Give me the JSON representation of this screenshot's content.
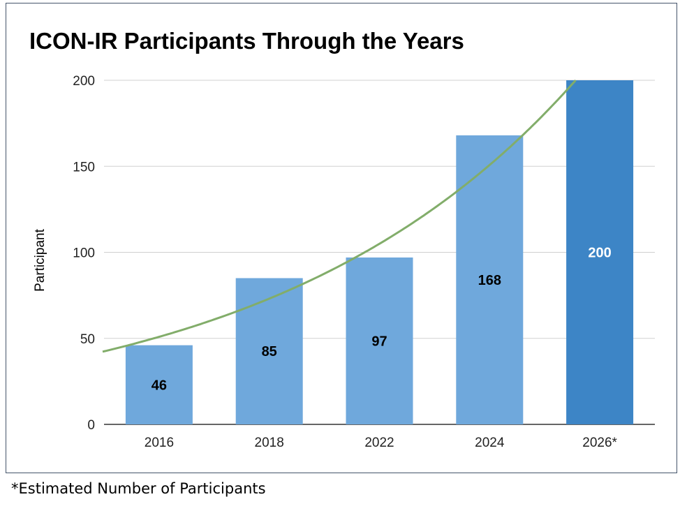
{
  "chart_data": {
    "type": "bar",
    "title": "ICON-IR Participants Through the Years",
    "xlabel": "",
    "ylabel": "Participant",
    "categories": [
      "2016",
      "2018",
      "2022",
      "2024",
      "2026*"
    ],
    "values": [
      46,
      85,
      97,
      168,
      200
    ],
    "data_labels": [
      "46",
      "85",
      "97",
      "168",
      "200"
    ],
    "ylim": [
      0,
      200
    ],
    "yticks": [
      0,
      50,
      100,
      150,
      200
    ],
    "grid": true,
    "legend": "none",
    "bar_colors": [
      "#6fa8dc",
      "#6fa8dc",
      "#6fa8dc",
      "#6fa8dc",
      "#3d85c6"
    ],
    "data_label_colors": [
      "#000000",
      "#000000",
      "#000000",
      "#000000",
      "#ffffff"
    ],
    "trendline": {
      "type": "exponential",
      "color": "#82ad6a"
    }
  },
  "footnote": "*Estimated Number of Participants"
}
